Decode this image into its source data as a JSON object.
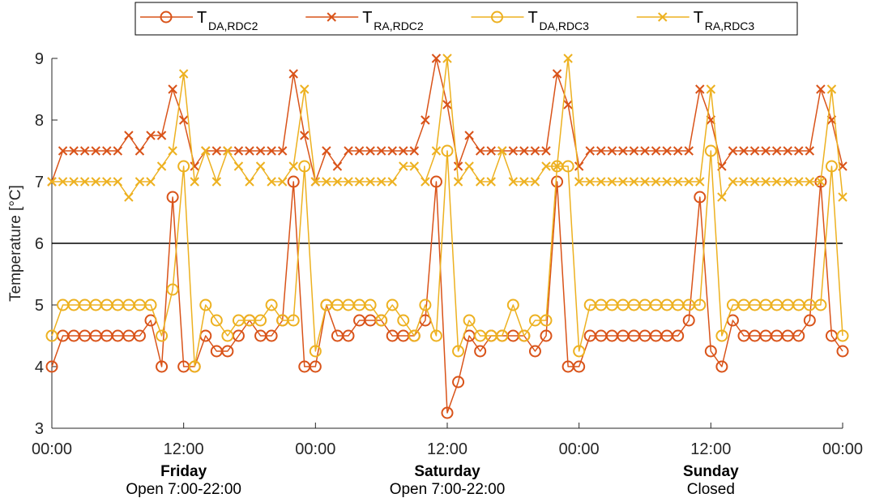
{
  "chart_data": {
    "type": "line",
    "ylabel": "Temperature [°C]",
    "ylim": [
      3,
      9
    ],
    "yticks": [
      "3",
      "4",
      "5",
      "6",
      "7",
      "8",
      "9"
    ],
    "xlim_hours": [
      0,
      72
    ],
    "xticks": [
      "00:00",
      "12:00",
      "00:00",
      "12:00",
      "00:00",
      "12:00",
      "00:00"
    ],
    "reference_line": 6,
    "grid": false,
    "legend_position": "top",
    "days": [
      {
        "name": "Friday",
        "hours": "Open 7:00-22:00"
      },
      {
        "name": "Saturday",
        "hours": "Open 7:00-22:00"
      },
      {
        "name": "Sunday",
        "hours": "Closed"
      }
    ],
    "series": [
      {
        "label_main": "T",
        "label_sub": "DA,RDC2",
        "color": "#D95319",
        "marker": "circle",
        "x": [
          0,
          1,
          2,
          3,
          4,
          5,
          6,
          7,
          8,
          9,
          10,
          11,
          12,
          13,
          14,
          15,
          16,
          17,
          18,
          19,
          20,
          21,
          22,
          23,
          24,
          25,
          26,
          27,
          28,
          29,
          30,
          31,
          32,
          33,
          34,
          35,
          36,
          37,
          38,
          39,
          40,
          41,
          42,
          43,
          44,
          45,
          46,
          47,
          48,
          49,
          50,
          51,
          52,
          53,
          54,
          55,
          56,
          57,
          58,
          59,
          60,
          61,
          62,
          63,
          64,
          65,
          66,
          67,
          68,
          69,
          70,
          71,
          72
        ],
        "values": [
          4,
          4.5,
          4.5,
          4.5,
          4.5,
          4.5,
          4.5,
          4.5,
          4.5,
          4.75,
          4,
          6.75,
          4,
          4,
          4.5,
          4.25,
          4.25,
          4.5,
          4.75,
          4.5,
          4.5,
          4.75,
          7,
          4,
          4,
          5,
          4.5,
          4.5,
          4.75,
          4.75,
          4.75,
          4.5,
          4.5,
          4.5,
          4.75,
          7,
          3.25,
          3.75,
          4.5,
          4.25,
          4.5,
          4.5,
          4.5,
          4.5,
          4.25,
          4.5,
          7,
          4,
          4,
          4.5,
          4.5,
          4.5,
          4.5,
          4.5,
          4.5,
          4.5,
          4.5,
          4.5,
          4.75,
          6.75,
          4.25,
          4,
          4.75,
          4.5,
          4.5,
          4.5,
          4.5,
          4.5,
          4.5,
          4.75,
          7,
          4.5,
          4.25
        ]
      },
      {
        "label_main": "T",
        "label_sub": "RA,RDC2",
        "color": "#D95319",
        "marker": "x",
        "x": [
          0,
          1,
          2,
          3,
          4,
          5,
          6,
          7,
          8,
          9,
          10,
          11,
          12,
          13,
          14,
          15,
          16,
          17,
          18,
          19,
          20,
          21,
          22,
          23,
          24,
          25,
          26,
          27,
          28,
          29,
          30,
          31,
          32,
          33,
          34,
          35,
          36,
          37,
          38,
          39,
          40,
          41,
          42,
          43,
          44,
          45,
          46,
          47,
          48,
          49,
          50,
          51,
          52,
          53,
          54,
          55,
          56,
          57,
          58,
          59,
          60,
          61,
          62,
          63,
          64,
          65,
          66,
          67,
          68,
          69,
          70,
          71,
          72
        ],
        "values": [
          7,
          7.5,
          7.5,
          7.5,
          7.5,
          7.5,
          7.5,
          7.75,
          7.5,
          7.75,
          7.75,
          8.5,
          8,
          7.25,
          7.5,
          7.5,
          7.5,
          7.5,
          7.5,
          7.5,
          7.5,
          7.5,
          8.75,
          7.75,
          7,
          7.5,
          7.25,
          7.5,
          7.5,
          7.5,
          7.5,
          7.5,
          7.5,
          7.5,
          8,
          9,
          8.25,
          7.25,
          7.75,
          7.5,
          7.5,
          7.5,
          7.5,
          7.5,
          7.5,
          7.5,
          8.75,
          8.25,
          7.25,
          7.5,
          7.5,
          7.5,
          7.5,
          7.5,
          7.5,
          7.5,
          7.5,
          7.5,
          7.5,
          8.5,
          8,
          7.25,
          7.5,
          7.5,
          7.5,
          7.5,
          7.5,
          7.5,
          7.5,
          7.5,
          8.5,
          8,
          7.25
        ]
      },
      {
        "label_main": "T",
        "label_sub": "DA,RDC3",
        "color": "#EDB120",
        "marker": "circle",
        "x": [
          0,
          1,
          2,
          3,
          4,
          5,
          6,
          7,
          8,
          9,
          10,
          11,
          12,
          13,
          14,
          15,
          16,
          17,
          18,
          19,
          20,
          21,
          22,
          23,
          24,
          25,
          26,
          27,
          28,
          29,
          30,
          31,
          32,
          33,
          34,
          35,
          36,
          37,
          38,
          39,
          40,
          41,
          42,
          43,
          44,
          45,
          46,
          47,
          48,
          49,
          50,
          51,
          52,
          53,
          54,
          55,
          56,
          57,
          58,
          59,
          60,
          61,
          62,
          63,
          64,
          65,
          66,
          67,
          68,
          69,
          70,
          71,
          72
        ],
        "values": [
          4.5,
          5,
          5,
          5,
          5,
          5,
          5,
          5,
          5,
          5,
          4.5,
          5.25,
          7.25,
          4,
          5,
          4.75,
          4.5,
          4.75,
          4.75,
          4.75,
          5,
          4.75,
          4.75,
          7.25,
          4.25,
          5,
          5,
          5,
          5,
          5,
          4.75,
          5,
          4.75,
          4.5,
          5,
          4.5,
          7.5,
          4.25,
          4.75,
          4.5,
          4.5,
          4.5,
          5,
          4.5,
          4.75,
          4.75,
          7.25,
          7.25,
          4.25,
          5,
          5,
          5,
          5,
          5,
          5,
          5,
          5,
          5,
          5,
          5,
          7.5,
          4.5,
          5,
          5,
          5,
          5,
          5,
          5,
          5,
          5,
          5,
          7.25,
          4.5
        ]
      },
      {
        "label_main": "T",
        "label_sub": "RA,RDC3",
        "color": "#EDB120",
        "marker": "x",
        "x": [
          0,
          1,
          2,
          3,
          4,
          5,
          6,
          7,
          8,
          9,
          10,
          11,
          12,
          13,
          14,
          15,
          16,
          17,
          18,
          19,
          20,
          21,
          22,
          23,
          24,
          25,
          26,
          27,
          28,
          29,
          30,
          31,
          32,
          33,
          34,
          35,
          36,
          37,
          38,
          39,
          40,
          41,
          42,
          43,
          44,
          45,
          46,
          47,
          48,
          49,
          50,
          51,
          52,
          53,
          54,
          55,
          56,
          57,
          58,
          59,
          60,
          61,
          62,
          63,
          64,
          65,
          66,
          67,
          68,
          69,
          70,
          71,
          72
        ],
        "values": [
          7,
          7,
          7,
          7,
          7,
          7,
          7,
          6.75,
          7,
          7,
          7.25,
          7.5,
          8.75,
          7,
          7.5,
          7,
          7.5,
          7.25,
          7,
          7.25,
          7,
          7,
          7.25,
          8.5,
          7,
          7,
          7,
          7,
          7,
          7,
          7,
          7,
          7.25,
          7.25,
          7,
          7.5,
          9,
          7,
          7.25,
          7,
          7,
          7.5,
          7,
          7,
          7,
          7.25,
          7.25,
          9,
          7,
          7,
          7,
          7,
          7,
          7,
          7,
          7,
          7,
          7,
          7,
          7,
          8.5,
          6.75,
          7,
          7,
          7,
          7,
          7,
          7,
          7,
          7,
          7,
          8.5,
          6.75
        ]
      }
    ]
  }
}
